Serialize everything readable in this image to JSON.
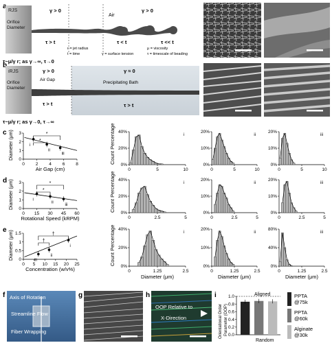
{
  "panels": {
    "a": {
      "letter": "a",
      "device": "RJS",
      "orifice": "Orifice Diameter",
      "label_air": "Air",
      "gamma_pos": "γ > 0",
      "gamma_pos2": "γ > 0",
      "tau_gt": "τ > t",
      "tau_lt": "τ < t",
      "tau_llt": "τ << t",
      "formula": "τ~μ/γ r; as γ→∞, τ→0",
      "legend_r": "r = jet radius",
      "legend_t": "t = time",
      "legend_gamma": "γ = surface tension",
      "legend_mu": "μ = viscosity",
      "legend_tau": "τ = timescale of beading"
    },
    "b": {
      "letter": "b",
      "device": "iRJS",
      "orifice": "Orifice Diameter",
      "air_gap": "Air Gap",
      "bath": "Precipitating Bath",
      "gamma_pos": "γ > 0",
      "gamma_zero": "γ ≈ 0",
      "tau_gt": "τ > t",
      "tau_gt2": "τ > t",
      "formula": "τ~μ/γ r; as γ→0, τ→∞"
    },
    "f": {
      "letter": "f",
      "axis": "Axis of Rotation",
      "flow": "Streamline Flow",
      "wrap": "Fiber Wrapping"
    },
    "g": {
      "letter": "g"
    },
    "h": {
      "letter": "h",
      "text1": "OOP Relative to",
      "text2": "X-Direction"
    },
    "i": {
      "letter": "i",
      "ylabel1": "Orientational Order",
      "ylabel2": "Parameter (OOP)",
      "aligned": "Aligned",
      "random": "Random",
      "legend": [
        "PPTA @75k",
        "PPTA @60k",
        "Alginate @30k"
      ],
      "colors": [
        "#222222",
        "#777777",
        "#bbbbbb"
      ]
    },
    "c": {
      "letter": "c"
    },
    "d": {
      "letter": "d"
    },
    "e": {
      "letter": "e"
    }
  },
  "chart_data": [
    {
      "id": "c-scatter",
      "type": "scatter",
      "xlabel": "Air Gap (cm)",
      "ylabel": "Diameter (μm)",
      "xlim": [
        0,
        8
      ],
      "ylim": [
        0,
        3
      ],
      "xticks": [
        "0",
        "2",
        "4",
        "6",
        "8"
      ],
      "yticks": [
        "0",
        "1",
        "2",
        "3"
      ],
      "points": [
        {
          "x": 1.5,
          "y": 2.3,
          "label": "i"
        },
        {
          "x": 3.5,
          "y": 1.7,
          "label": "ii"
        },
        {
          "x": 5.5,
          "y": 1.3,
          "label": "iii"
        }
      ],
      "sig": [
        "*",
        "*"
      ]
    },
    {
      "id": "c-hist-i",
      "type": "bar",
      "xlim": [
        0,
        10
      ],
      "ylim": [
        0,
        40
      ],
      "xticks": [
        "0",
        "5",
        "10"
      ],
      "yticks": [
        "0%",
        "20%",
        "40%"
      ],
      "ylabel": "Count Percentage",
      "tag": "i",
      "bins": [
        0.5,
        1.0,
        1.5,
        2.0,
        2.5,
        3.0,
        3.5,
        4.0,
        4.5,
        5.0,
        5.5,
        6.0
      ],
      "values": [
        2,
        18,
        34,
        36,
        22,
        14,
        9,
        6,
        4,
        2,
        1,
        1
      ]
    },
    {
      "id": "c-hist-ii",
      "type": "bar",
      "xlim": [
        0,
        10
      ],
      "ylim": [
        0,
        20
      ],
      "xticks": [
        "0",
        "5",
        "10"
      ],
      "yticks": [
        "0%",
        "10%",
        "20%"
      ],
      "tag": "ii",
      "bins": [
        0.5,
        1.0,
        1.5,
        2.0,
        2.5,
        3.0,
        3.5,
        4.0,
        4.5,
        5.0
      ],
      "values": [
        3,
        10,
        17,
        19,
        15,
        11,
        7,
        4,
        2,
        1
      ]
    },
    {
      "id": "c-hist-iii",
      "type": "bar",
      "xlim": [
        0,
        10
      ],
      "ylim": [
        0,
        20
      ],
      "xticks": [
        "0",
        "5",
        "10"
      ],
      "yticks": [
        "0%",
        "10%",
        "20%"
      ],
      "tag": "iii",
      "bins": [
        0.5,
        1.0,
        1.5,
        2.0,
        2.5,
        3.0,
        3.5
      ],
      "values": [
        4,
        16,
        19,
        13,
        7,
        3,
        1
      ]
    },
    {
      "id": "d-scatter",
      "type": "scatter",
      "xlabel": "Rotational Speed (kRPM)",
      "ylabel": "Diameter (μm)",
      "xlim": [
        0,
        60
      ],
      "ylim": [
        0,
        3
      ],
      "xticks": [
        "0",
        "15",
        "30",
        "45",
        "60"
      ],
      "yticks": [
        "0",
        "1",
        "2",
        "3"
      ],
      "points": [
        {
          "x": 15,
          "y": 1.7,
          "label": "i"
        },
        {
          "x": 30,
          "y": 1.4,
          "label": "ii"
        },
        {
          "x": 45,
          "y": 1.1,
          "label": "iii"
        }
      ],
      "sig": [
        "*",
        "*"
      ]
    },
    {
      "id": "d-hist-i",
      "type": "bar",
      "xlim": [
        0,
        5
      ],
      "ylim": [
        0,
        40
      ],
      "xticks": [
        "0",
        "2.5",
        "5"
      ],
      "yticks": [
        "0%",
        "20%",
        "40%"
      ],
      "ylabel": "Count Percentage",
      "tag": "i",
      "bins": [
        0.5,
        0.75,
        1.0,
        1.25,
        1.5,
        1.75,
        2.0,
        2.25,
        2.5,
        2.75,
        3.0,
        3.25
      ],
      "values": [
        4,
        12,
        24,
        30,
        32,
        22,
        14,
        9,
        5,
        3,
        2,
        1
      ]
    },
    {
      "id": "d-hist-ii",
      "type": "bar",
      "xlim": [
        0,
        5
      ],
      "ylim": [
        0,
        20
      ],
      "xticks": [
        "0",
        "2.5",
        "5"
      ],
      "yticks": [
        "0%",
        "10%",
        "20%"
      ],
      "tag": "ii",
      "bins": [
        0.5,
        0.75,
        1.0,
        1.25,
        1.5,
        1.75,
        2.0,
        2.25,
        2.5
      ],
      "values": [
        5,
        12,
        17,
        16,
        12,
        9,
        5,
        3,
        1
      ]
    },
    {
      "id": "d-hist-iii",
      "type": "bar",
      "xlim": [
        0,
        5
      ],
      "ylim": [
        0,
        20
      ],
      "xticks": [
        "0",
        "2.5",
        "5"
      ],
      "yticks": [
        "0%",
        "10%",
        "20%"
      ],
      "tag": "iii",
      "bins": [
        0.5,
        0.75,
        1.0,
        1.25,
        1.5,
        1.75,
        2.0
      ],
      "values": [
        6,
        17,
        19,
        12,
        6,
        3,
        1
      ]
    },
    {
      "id": "e-scatter",
      "type": "scatter",
      "xlabel": "Concentration (w/v%)",
      "ylabel": "Diameter (μm)",
      "xlim": [
        0,
        25
      ],
      "ylim": [
        0,
        1.5
      ],
      "xticks": [
        "0",
        "5",
        "10",
        "15",
        "20",
        "25"
      ],
      "yticks": [
        "0",
        "0.5",
        "1",
        "1.5"
      ],
      "points": [
        {
          "x": 7,
          "y": 0.3,
          "label": "iii"
        },
        {
          "x": 12,
          "y": 0.55,
          "label": "ii"
        },
        {
          "x": 21,
          "y": 1.1,
          "label": "i"
        }
      ],
      "sig": [
        "†",
        "†"
      ]
    },
    {
      "id": "e-hist-i",
      "type": "bar",
      "xlim": [
        0,
        2.5
      ],
      "ylim": [
        0,
        40
      ],
      "xticks": [
        "0",
        "1.25",
        "2.5"
      ],
      "yticks": [
        "0%",
        "20%",
        "40%"
      ],
      "ylabel": "Count Percentage",
      "xlabel": "Diameter (μm)",
      "tag": "i",
      "bins": [
        0.5,
        0.625,
        0.75,
        0.875,
        1.0,
        1.125,
        1.25,
        1.375,
        1.5,
        1.625,
        1.75
      ],
      "values": [
        4,
        10,
        22,
        34,
        38,
        28,
        18,
        12,
        8,
        5,
        2
      ]
    },
    {
      "id": "e-hist-ii",
      "type": "bar",
      "xlim": [
        0,
        2.5
      ],
      "ylim": [
        0,
        20
      ],
      "xticks": [
        "0",
        "1.25",
        "2.5"
      ],
      "yticks": [
        "0%",
        "10%",
        "20%"
      ],
      "xlabel": "Diameter (μm)",
      "tag": "ii",
      "bins": [
        0.25,
        0.375,
        0.5,
        0.625,
        0.75,
        0.875,
        1.0,
        1.125,
        1.25
      ],
      "values": [
        5,
        14,
        19,
        16,
        11,
        7,
        4,
        2,
        1
      ]
    },
    {
      "id": "e-hist-iii",
      "type": "bar",
      "xlim": [
        0,
        2.5
      ],
      "ylim": [
        0,
        80
      ],
      "xticks": [
        "0",
        "1.25",
        "2.5"
      ],
      "yticks": [
        "0%",
        "40%",
        "80%"
      ],
      "xlabel": "Diameter (μm)",
      "tag": "iii",
      "bins": [
        0.125,
        0.25,
        0.375,
        0.5,
        0.625,
        0.75
      ],
      "values": [
        10,
        72,
        40,
        14,
        4,
        1
      ]
    },
    {
      "id": "i-bar",
      "type": "bar",
      "ylim": [
        0,
        1.0
      ],
      "yticks": [
        "0.0",
        "0.2",
        "0.4",
        "0.6",
        "0.8",
        "1.0"
      ],
      "categories": [
        "PPTA @75k",
        "PPTA @60k",
        "Alginate @30k"
      ],
      "values": [
        0.86,
        0.88,
        0.87
      ]
    }
  ]
}
